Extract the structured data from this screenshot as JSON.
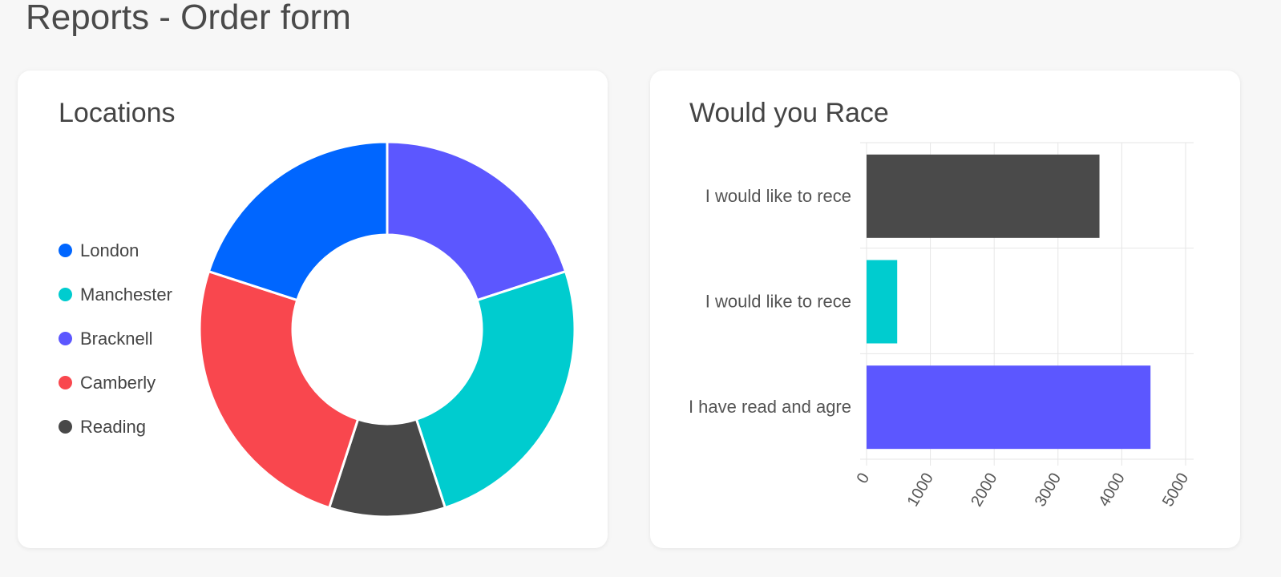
{
  "page": {
    "title": "Reports - Order form"
  },
  "chart_data": [
    {
      "type": "pie",
      "title": "Locations",
      "legend_position": "left",
      "categories": [
        "London",
        "Manchester",
        "Bracknell",
        "Camberly",
        "Reading"
      ],
      "values": [
        20,
        25,
        20,
        25,
        10
      ],
      "colors": [
        "#0066ff",
        "#00cccf",
        "#5c57ff",
        "#f9474e",
        "#484848"
      ],
      "slice_order": [
        "Bracknell",
        "Manchester",
        "Reading",
        "Camberly",
        "London"
      ]
    },
    {
      "type": "bar",
      "orientation": "horizontal",
      "title": "Would you Race",
      "categories": [
        "I would like to rece",
        "I would like to rece",
        "I have read and agre"
      ],
      "values": [
        3650,
        480,
        4450
      ],
      "colors": [
        "#4a4a4a",
        "#00cccf",
        "#5c57ff"
      ],
      "xlim": [
        0,
        5000
      ],
      "xticks": [
        "0",
        "1000",
        "2000",
        "3000",
        "4000",
        "5000"
      ],
      "grid": true
    }
  ]
}
